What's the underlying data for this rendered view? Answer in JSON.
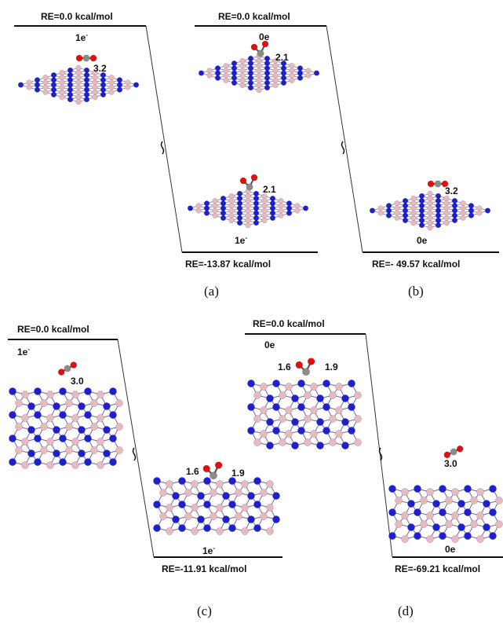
{
  "colors": {
    "boron": "#e8b9bd",
    "nitrogen": "#1f1fd0",
    "oxygen": "#e01010",
    "carbon": "#8c8c8c",
    "line": "#111111"
  },
  "panels": {
    "a": {
      "caption": "(a)",
      "top_energy": "RE=0.0 kcal/mol",
      "top_charge": "1e",
      "top_charge_sup": "-",
      "top_bond": "3.2",
      "bottom_energy": "RE=-13.87 kcal/mol",
      "bottom_charge": "1e",
      "bottom_charge_sup": "-",
      "bottom_bond": "2.1"
    },
    "b": {
      "caption": "(b)",
      "top_energy": "RE=0.0 kcal/mol",
      "top_charge": "0e",
      "top_bond": "2.1",
      "bottom_energy": "RE=- 49.57 kcal/mol",
      "bottom_charge": "0e",
      "bottom_bond": "3.2"
    },
    "c": {
      "caption": "(c)",
      "top_energy": "RE=0.0 kcal/mol",
      "top_charge": "1e",
      "top_charge_sup": "-",
      "top_bond": "3.0",
      "bottom_energy": "RE=-11.91 kcal/mol",
      "bottom_charge": "1e",
      "bottom_charge_sup": "-",
      "bottom_bond_left": "1.6",
      "bottom_bond_right": "1.9"
    },
    "d": {
      "caption": "(d)",
      "top_energy": "RE=0.0 kcal/mol",
      "top_charge": "0e",
      "top_bond_left": "1.6",
      "top_bond_right": "1.9",
      "bottom_energy": "RE=-69.21 kcal/mol",
      "bottom_charge": "0e",
      "bottom_bond": "3.0"
    }
  }
}
